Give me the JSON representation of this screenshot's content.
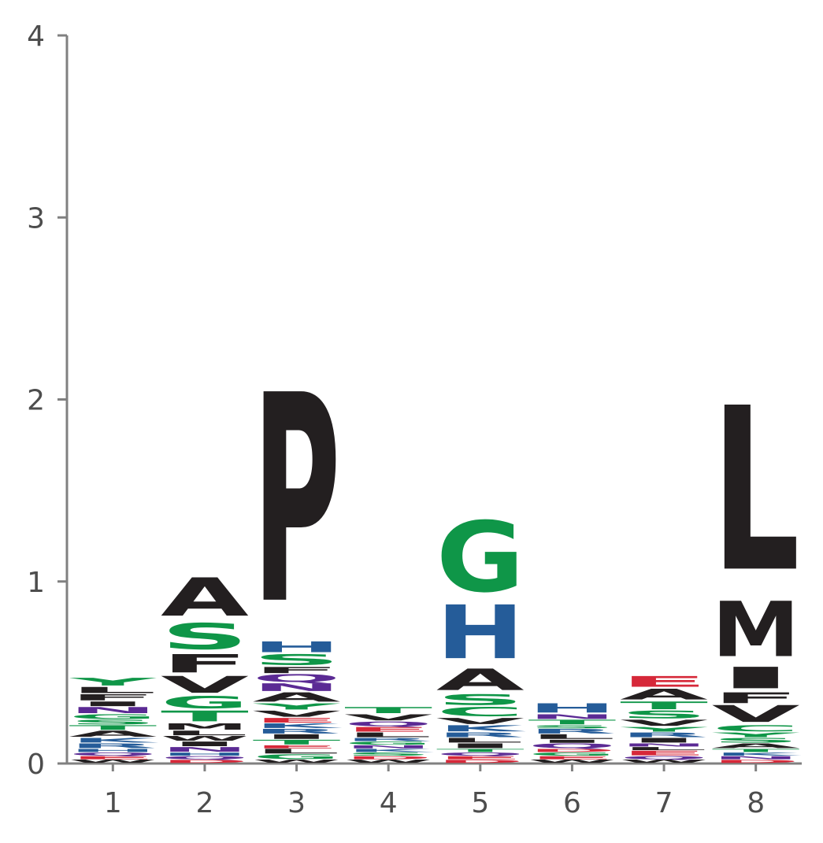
{
  "chart_data": {
    "type": "sequence-logo",
    "title": "",
    "xlabel": "",
    "ylabel": "",
    "ylim": [
      0,
      4
    ],
    "yticks": [
      "0",
      "1",
      "2",
      "3",
      "4"
    ],
    "positions": [
      "1",
      "2",
      "3",
      "4",
      "5",
      "6",
      "7",
      "8"
    ],
    "colors": {
      "hydrophobic": "#231f20",
      "polar": "#0f9648",
      "basic": "#255c99",
      "acidic": "#d62839",
      "amide": "#5b2a94"
    },
    "stacks": [
      [
        {
          "letter": "W",
          "height": 0.02,
          "color": "#231f20"
        },
        {
          "letter": "E",
          "height": 0.02,
          "color": "#d62839"
        },
        {
          "letter": "Q",
          "height": 0.02,
          "color": "#5b2a94"
        },
        {
          "letter": "H",
          "height": 0.02,
          "color": "#255c99"
        },
        {
          "letter": "R",
          "height": 0.03,
          "color": "#255c99"
        },
        {
          "letter": "K",
          "height": 0.03,
          "color": "#255c99"
        },
        {
          "letter": "A",
          "height": 0.04,
          "color": "#231f20"
        },
        {
          "letter": "T",
          "height": 0.03,
          "color": "#0f9648"
        },
        {
          "letter": "S",
          "height": 0.03,
          "color": "#0f9648"
        },
        {
          "letter": "G",
          "height": 0.03,
          "color": "#0f9648"
        },
        {
          "letter": "N",
          "height": 0.04,
          "color": "#5b2a94"
        },
        {
          "letter": "I",
          "height": 0.03,
          "color": "#231f20"
        },
        {
          "letter": "F",
          "height": 0.04,
          "color": "#231f20"
        },
        {
          "letter": "L",
          "height": 0.04,
          "color": "#231f20"
        },
        {
          "letter": "Y",
          "height": 0.05,
          "color": "#0f9648"
        }
      ],
      [
        {
          "letter": "D",
          "height": 0.02,
          "color": "#d62839"
        },
        {
          "letter": "Q",
          "height": 0.02,
          "color": "#5b2a94"
        },
        {
          "letter": "H",
          "height": 0.02,
          "color": "#255c99"
        },
        {
          "letter": "N",
          "height": 0.03,
          "color": "#5b2a94"
        },
        {
          "letter": "I",
          "height": 0.03,
          "color": "#231f20"
        },
        {
          "letter": "W",
          "height": 0.03,
          "color": "#231f20"
        },
        {
          "letter": "L",
          "height": 0.03,
          "color": "#231f20"
        },
        {
          "letter": "M",
          "height": 0.04,
          "color": "#231f20"
        },
        {
          "letter": "T",
          "height": 0.07,
          "color": "#0f9648"
        },
        {
          "letter": "G",
          "height": 0.08,
          "color": "#0f9648"
        },
        {
          "letter": "V",
          "height": 0.11,
          "color": "#231f20"
        },
        {
          "letter": "F",
          "height": 0.12,
          "color": "#231f20"
        },
        {
          "letter": "S",
          "height": 0.17,
          "color": "#0f9648"
        },
        {
          "letter": "A",
          "height": 0.25,
          "color": "#231f20"
        }
      ],
      [
        {
          "letter": "W",
          "height": 0.02,
          "color": "#231f20"
        },
        {
          "letter": "G",
          "height": 0.03,
          "color": "#0f9648"
        },
        {
          "letter": "L",
          "height": 0.03,
          "color": "#231f20"
        },
        {
          "letter": "E",
          "height": 0.02,
          "color": "#d62839"
        },
        {
          "letter": "T",
          "height": 0.03,
          "color": "#0f9648"
        },
        {
          "letter": "I",
          "height": 0.03,
          "color": "#231f20"
        },
        {
          "letter": "R",
          "height": 0.03,
          "color": "#255c99"
        },
        {
          "letter": "K",
          "height": 0.03,
          "color": "#255c99"
        },
        {
          "letter": "E",
          "height": 0.03,
          "color": "#d62839"
        },
        {
          "letter": "V",
          "height": 0.04,
          "color": "#231f20"
        },
        {
          "letter": "Y",
          "height": 0.04,
          "color": "#0f9648"
        },
        {
          "letter": "A",
          "height": 0.06,
          "color": "#231f20"
        },
        {
          "letter": "N",
          "height": 0.05,
          "color": "#5b2a94"
        },
        {
          "letter": "Q",
          "height": 0.05,
          "color": "#5b2a94"
        },
        {
          "letter": "F",
          "height": 0.04,
          "color": "#231f20"
        },
        {
          "letter": "S",
          "height": 0.07,
          "color": "#0f9648"
        },
        {
          "letter": "H",
          "height": 0.07,
          "color": "#255c99"
        },
        {
          "letter": "P",
          "height": 1.36,
          "color": "#231f20"
        }
      ],
      [
        {
          "letter": "W",
          "height": 0.02,
          "color": "#231f20"
        },
        {
          "letter": "D",
          "height": 0.02,
          "color": "#d62839"
        },
        {
          "letter": "S",
          "height": 0.02,
          "color": "#0f9648"
        },
        {
          "letter": "K",
          "height": 0.02,
          "color": "#255c99"
        },
        {
          "letter": "N",
          "height": 0.02,
          "color": "#5b2a94"
        },
        {
          "letter": "G",
          "height": 0.02,
          "color": "#0f9648"
        },
        {
          "letter": "R",
          "height": 0.02,
          "color": "#255c99"
        },
        {
          "letter": "L",
          "height": 0.03,
          "color": "#231f20"
        },
        {
          "letter": "E",
          "height": 0.03,
          "color": "#d62839"
        },
        {
          "letter": "Q",
          "height": 0.03,
          "color": "#5b2a94"
        },
        {
          "letter": "V",
          "height": 0.04,
          "color": "#231f20"
        },
        {
          "letter": "T",
          "height": 0.04,
          "color": "#0f9648"
        }
      ],
      [
        {
          "letter": "D",
          "height": 0.02,
          "color": "#d62839"
        },
        {
          "letter": "E",
          "height": 0.02,
          "color": "#d62839"
        },
        {
          "letter": "Q",
          "height": 0.02,
          "color": "#5b2a94"
        },
        {
          "letter": "T",
          "height": 0.02,
          "color": "#0f9648"
        },
        {
          "letter": "I",
          "height": 0.03,
          "color": "#231f20"
        },
        {
          "letter": "L",
          "height": 0.03,
          "color": "#231f20"
        },
        {
          "letter": "R",
          "height": 0.03,
          "color": "#255c99"
        },
        {
          "letter": "K",
          "height": 0.04,
          "color": "#255c99"
        },
        {
          "letter": "V",
          "height": 0.04,
          "color": "#231f20"
        },
        {
          "letter": "C",
          "height": 0.06,
          "color": "#0f9648"
        },
        {
          "letter": "S",
          "height": 0.07,
          "color": "#0f9648"
        },
        {
          "letter": "A",
          "height": 0.14,
          "color": "#231f20"
        },
        {
          "letter": "H",
          "height": 0.35,
          "color": "#255c99"
        },
        {
          "letter": "G",
          "height": 0.46,
          "color": "#0f9648"
        }
      ],
      [
        {
          "letter": "W",
          "height": 0.02,
          "color": "#231f20"
        },
        {
          "letter": "E",
          "height": 0.02,
          "color": "#d62839"
        },
        {
          "letter": "G",
          "height": 0.02,
          "color": "#0f9648"
        },
        {
          "letter": "D",
          "height": 0.02,
          "color": "#d62839"
        },
        {
          "letter": "Q",
          "height": 0.03,
          "color": "#5b2a94"
        },
        {
          "letter": "I",
          "height": 0.02,
          "color": "#231f20"
        },
        {
          "letter": "L",
          "height": 0.03,
          "color": "#231f20"
        },
        {
          "letter": "R",
          "height": 0.03,
          "color": "#255c99"
        },
        {
          "letter": "S",
          "height": 0.02,
          "color": "#0f9648"
        },
        {
          "letter": "T",
          "height": 0.03,
          "color": "#0f9648"
        },
        {
          "letter": "N",
          "height": 0.03,
          "color": "#5b2a94"
        },
        {
          "letter": "H",
          "height": 0.06,
          "color": "#255c99"
        }
      ],
      [
        {
          "letter": "W",
          "height": 0.02,
          "color": "#231f20"
        },
        {
          "letter": "Q",
          "height": 0.02,
          "color": "#5b2a94"
        },
        {
          "letter": "E",
          "height": 0.03,
          "color": "#d62839"
        },
        {
          "letter": "L",
          "height": 0.02,
          "color": "#231f20"
        },
        {
          "letter": "N",
          "height": 0.02,
          "color": "#5b2a94"
        },
        {
          "letter": "I",
          "height": 0.03,
          "color": "#231f20"
        },
        {
          "letter": "R",
          "height": 0.03,
          "color": "#255c99"
        },
        {
          "letter": "Y",
          "height": 0.03,
          "color": "#0f9648"
        },
        {
          "letter": "V",
          "height": 0.04,
          "color": "#231f20"
        },
        {
          "letter": "S",
          "height": 0.05,
          "color": "#0f9648"
        },
        {
          "letter": "T",
          "height": 0.05,
          "color": "#0f9648"
        },
        {
          "letter": "A",
          "height": 0.07,
          "color": "#231f20"
        },
        {
          "letter": "E",
          "height": 0.07,
          "color": "#d62839"
        }
      ],
      [
        {
          "letter": "D",
          "height": 0.02,
          "color": "#d62839"
        },
        {
          "letter": "N",
          "height": 0.02,
          "color": "#5b2a94"
        },
        {
          "letter": "K",
          "height": 0.02,
          "color": "#255c99"
        },
        {
          "letter": "T",
          "height": 0.02,
          "color": "#0f9648"
        },
        {
          "letter": "A",
          "height": 0.03,
          "color": "#231f20"
        },
        {
          "letter": "S",
          "height": 0.03,
          "color": "#0f9648"
        },
        {
          "letter": "Y",
          "height": 0.03,
          "color": "#0f9648"
        },
        {
          "letter": "C",
          "height": 0.04,
          "color": "#0f9648"
        },
        {
          "letter": "V",
          "height": 0.11,
          "color": "#231f20"
        },
        {
          "letter": "F",
          "height": 0.07,
          "color": "#231f20"
        },
        {
          "letter": "I",
          "height": 0.14,
          "color": "#231f20"
        },
        {
          "letter": "M",
          "height": 0.36,
          "color": "#231f20"
        },
        {
          "letter": "L",
          "height": 1.07,
          "color": "#231f20"
        }
      ]
    ]
  }
}
